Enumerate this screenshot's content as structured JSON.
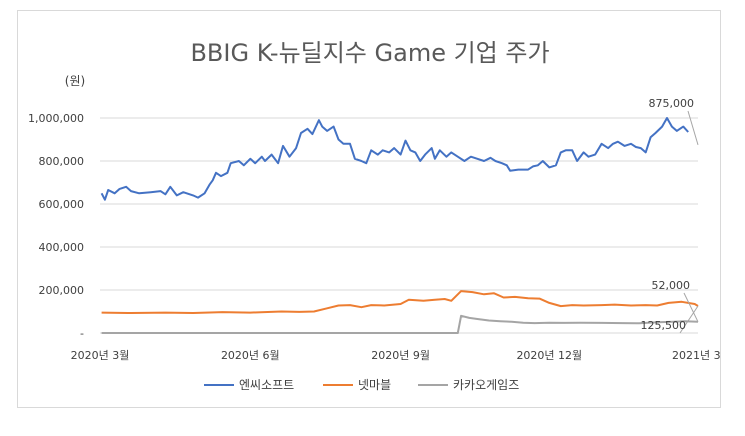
{
  "chart_data": {
    "type": "line",
    "title": "BBIG K-뉴딜지수 Game 기업 주가",
    "ylabel": "(원)",
    "xlabel": "",
    "ylim": [
      0,
      1000000
    ],
    "yticks": [
      0,
      200000,
      400000,
      600000,
      800000,
      1000000
    ],
    "ytick_labels": [
      "-",
      "200,000",
      "400,000",
      "600,000",
      "800,000",
      "1,000,000"
    ],
    "x_range": [
      "2020-03-01",
      "2021-03-02"
    ],
    "xticks": [
      {
        "date": "2020-03-01",
        "label": "2020년 3월"
      },
      {
        "date": "2020-06-01",
        "label": "2020년 6월"
      },
      {
        "date": "2020-09-01",
        "label": "2020년 9월"
      },
      {
        "date": "2020-12-01",
        "label": "2020년 12월"
      },
      {
        "date": "2021-03-01",
        "label": "2021년 3"
      }
    ],
    "grid": true,
    "legend_position": "bottom",
    "series": [
      {
        "name": "엔씨소프트",
        "color": "#4472c4",
        "points": [
          [
            "2020-03-02",
            650000
          ],
          [
            "2020-03-04",
            620000
          ],
          [
            "2020-03-06",
            665000
          ],
          [
            "2020-03-10",
            650000
          ],
          [
            "2020-03-13",
            670000
          ],
          [
            "2020-03-17",
            680000
          ],
          [
            "2020-03-20",
            660000
          ],
          [
            "2020-03-25",
            650000
          ],
          [
            "2020-04-01",
            655000
          ],
          [
            "2020-04-07",
            660000
          ],
          [
            "2020-04-10",
            645000
          ],
          [
            "2020-04-13",
            680000
          ],
          [
            "2020-04-17",
            640000
          ],
          [
            "2020-04-21",
            655000
          ],
          [
            "2020-04-27",
            640000
          ],
          [
            "2020-04-30",
            630000
          ],
          [
            "2020-05-04",
            650000
          ],
          [
            "2020-05-07",
            690000
          ],
          [
            "2020-05-09",
            710000
          ],
          [
            "2020-05-11",
            745000
          ],
          [
            "2020-05-14",
            730000
          ],
          [
            "2020-05-18",
            745000
          ],
          [
            "2020-05-20",
            790000
          ],
          [
            "2020-05-25",
            800000
          ],
          [
            "2020-05-28",
            780000
          ],
          [
            "2020-06-01",
            810000
          ],
          [
            "2020-06-04",
            790000
          ],
          [
            "2020-06-08",
            820000
          ],
          [
            "2020-06-10",
            800000
          ],
          [
            "2020-06-14",
            830000
          ],
          [
            "2020-06-18",
            790000
          ],
          [
            "2020-06-21",
            870000
          ],
          [
            "2020-06-25",
            820000
          ],
          [
            "2020-06-29",
            860000
          ],
          [
            "2020-07-02",
            930000
          ],
          [
            "2020-07-06",
            950000
          ],
          [
            "2020-07-09",
            925000
          ],
          [
            "2020-07-13",
            990000
          ],
          [
            "2020-07-15",
            960000
          ],
          [
            "2020-07-18",
            940000
          ],
          [
            "2020-07-22",
            960000
          ],
          [
            "2020-07-25",
            900000
          ],
          [
            "2020-07-28",
            880000
          ],
          [
            "2020-08-01",
            880000
          ],
          [
            "2020-08-04",
            810000
          ],
          [
            "2020-08-08",
            800000
          ],
          [
            "2020-08-11",
            790000
          ],
          [
            "2020-08-14",
            850000
          ],
          [
            "2020-08-18",
            830000
          ],
          [
            "2020-08-21",
            850000
          ],
          [
            "2020-08-25",
            840000
          ],
          [
            "2020-08-28",
            860000
          ],
          [
            "2020-09-01",
            830000
          ],
          [
            "2020-09-04",
            895000
          ],
          [
            "2020-09-07",
            850000
          ],
          [
            "2020-09-10",
            840000
          ],
          [
            "2020-09-13",
            800000
          ],
          [
            "2020-09-16",
            830000
          ],
          [
            "2020-09-20",
            860000
          ],
          [
            "2020-09-22",
            810000
          ],
          [
            "2020-09-25",
            850000
          ],
          [
            "2020-09-29",
            820000
          ],
          [
            "2020-10-02",
            840000
          ],
          [
            "2020-10-06",
            820000
          ],
          [
            "2020-10-10",
            800000
          ],
          [
            "2020-10-14",
            820000
          ],
          [
            "2020-10-18",
            810000
          ],
          [
            "2020-10-22",
            800000
          ],
          [
            "2020-10-26",
            815000
          ],
          [
            "2020-10-29",
            800000
          ],
          [
            "2020-11-02",
            790000
          ],
          [
            "2020-11-05",
            780000
          ],
          [
            "2020-11-07",
            755000
          ],
          [
            "2020-11-12",
            760000
          ],
          [
            "2020-11-18",
            760000
          ],
          [
            "2020-11-21",
            775000
          ],
          [
            "2020-11-24",
            780000
          ],
          [
            "2020-11-27",
            800000
          ],
          [
            "2020-12-01",
            770000
          ],
          [
            "2020-12-05",
            780000
          ],
          [
            "2020-12-08",
            840000
          ],
          [
            "2020-12-11",
            850000
          ],
          [
            "2020-12-15",
            850000
          ],
          [
            "2020-12-18",
            800000
          ],
          [
            "2020-12-22",
            840000
          ],
          [
            "2020-12-25",
            820000
          ],
          [
            "2020-12-29",
            830000
          ],
          [
            "2021-01-02",
            880000
          ],
          [
            "2021-01-06",
            860000
          ],
          [
            "2021-01-09",
            880000
          ],
          [
            "2021-01-12",
            890000
          ],
          [
            "2021-01-16",
            870000
          ],
          [
            "2021-01-20",
            880000
          ],
          [
            "2021-01-23",
            865000
          ],
          [
            "2021-01-26",
            860000
          ],
          [
            "2021-01-29",
            840000
          ],
          [
            "2021-02-01",
            910000
          ],
          [
            "2021-02-04",
            930000
          ],
          [
            "2021-02-08",
            960000
          ],
          [
            "2021-02-11",
            1000000
          ],
          [
            "2021-02-14",
            960000
          ],
          [
            "2021-02-17",
            940000
          ],
          [
            "2021-02-21",
            960000
          ],
          [
            "2021-02-24",
            935000
          ]
        ]
      },
      {
        "name": "넷마블",
        "color": "#ed7d31",
        "points": [
          [
            "2020-03-02",
            95000
          ],
          [
            "2020-03-20",
            93000
          ],
          [
            "2020-04-10",
            95000
          ],
          [
            "2020-04-27",
            93000
          ],
          [
            "2020-05-15",
            97000
          ],
          [
            "2020-06-01",
            95000
          ],
          [
            "2020-06-20",
            100000
          ],
          [
            "2020-07-01",
            98000
          ],
          [
            "2020-07-10",
            100000
          ],
          [
            "2020-07-18",
            115000
          ],
          [
            "2020-07-25",
            128000
          ],
          [
            "2020-08-01",
            130000
          ],
          [
            "2020-08-08",
            120000
          ],
          [
            "2020-08-14",
            130000
          ],
          [
            "2020-08-22",
            128000
          ],
          [
            "2020-09-01",
            135000
          ],
          [
            "2020-09-06",
            155000
          ],
          [
            "2020-09-15",
            150000
          ],
          [
            "2020-09-22",
            155000
          ],
          [
            "2020-09-28",
            158000
          ],
          [
            "2020-10-02",
            150000
          ],
          [
            "2020-10-08",
            195000
          ],
          [
            "2020-10-15",
            190000
          ],
          [
            "2020-10-22",
            180000
          ],
          [
            "2020-10-28",
            185000
          ],
          [
            "2020-11-03",
            165000
          ],
          [
            "2020-11-10",
            168000
          ],
          [
            "2020-11-18",
            162000
          ],
          [
            "2020-11-25",
            160000
          ],
          [
            "2020-12-01",
            140000
          ],
          [
            "2020-12-08",
            125000
          ],
          [
            "2020-12-15",
            130000
          ],
          [
            "2020-12-22",
            128000
          ],
          [
            "2021-01-02",
            130000
          ],
          [
            "2021-01-10",
            132000
          ],
          [
            "2021-01-20",
            128000
          ],
          [
            "2021-01-29",
            130000
          ],
          [
            "2021-02-05",
            128000
          ],
          [
            "2021-02-12",
            140000
          ],
          [
            "2021-02-20",
            145000
          ],
          [
            "2021-02-28",
            135000
          ],
          [
            "2021-03-02",
            125500
          ]
        ]
      },
      {
        "name": "카카오게임즈",
        "color": "#a5a5a5",
        "points": [
          [
            "2020-03-02",
            0
          ],
          [
            "2020-10-06",
            0
          ],
          [
            "2020-10-08",
            80000
          ],
          [
            "2020-10-13",
            70000
          ],
          [
            "2020-10-18",
            65000
          ],
          [
            "2020-10-25",
            58000
          ],
          [
            "2020-11-01",
            55000
          ],
          [
            "2020-11-08",
            52000
          ],
          [
            "2020-11-15",
            48000
          ],
          [
            "2020-11-22",
            46000
          ],
          [
            "2020-12-01",
            48000
          ],
          [
            "2020-12-10",
            47000
          ],
          [
            "2020-12-20",
            48000
          ],
          [
            "2021-01-02",
            47000
          ],
          [
            "2021-01-15",
            46000
          ],
          [
            "2021-01-25",
            45000
          ],
          [
            "2021-02-05",
            50000
          ],
          [
            "2021-02-15",
            52000
          ],
          [
            "2021-02-22",
            55000
          ],
          [
            "2021-03-02",
            52000
          ]
        ]
      }
    ],
    "annotations": [
      {
        "text": "875,000",
        "series": "엔씨소프트",
        "date": "2021-03-02",
        "value": 875000
      },
      {
        "text": "52,000",
        "series": "카카오게임즈",
        "date": "2021-03-02",
        "value": 52000
      },
      {
        "text": "125,500",
        "series": "넷마블",
        "date": "2021-03-02",
        "value": 125500
      }
    ]
  }
}
